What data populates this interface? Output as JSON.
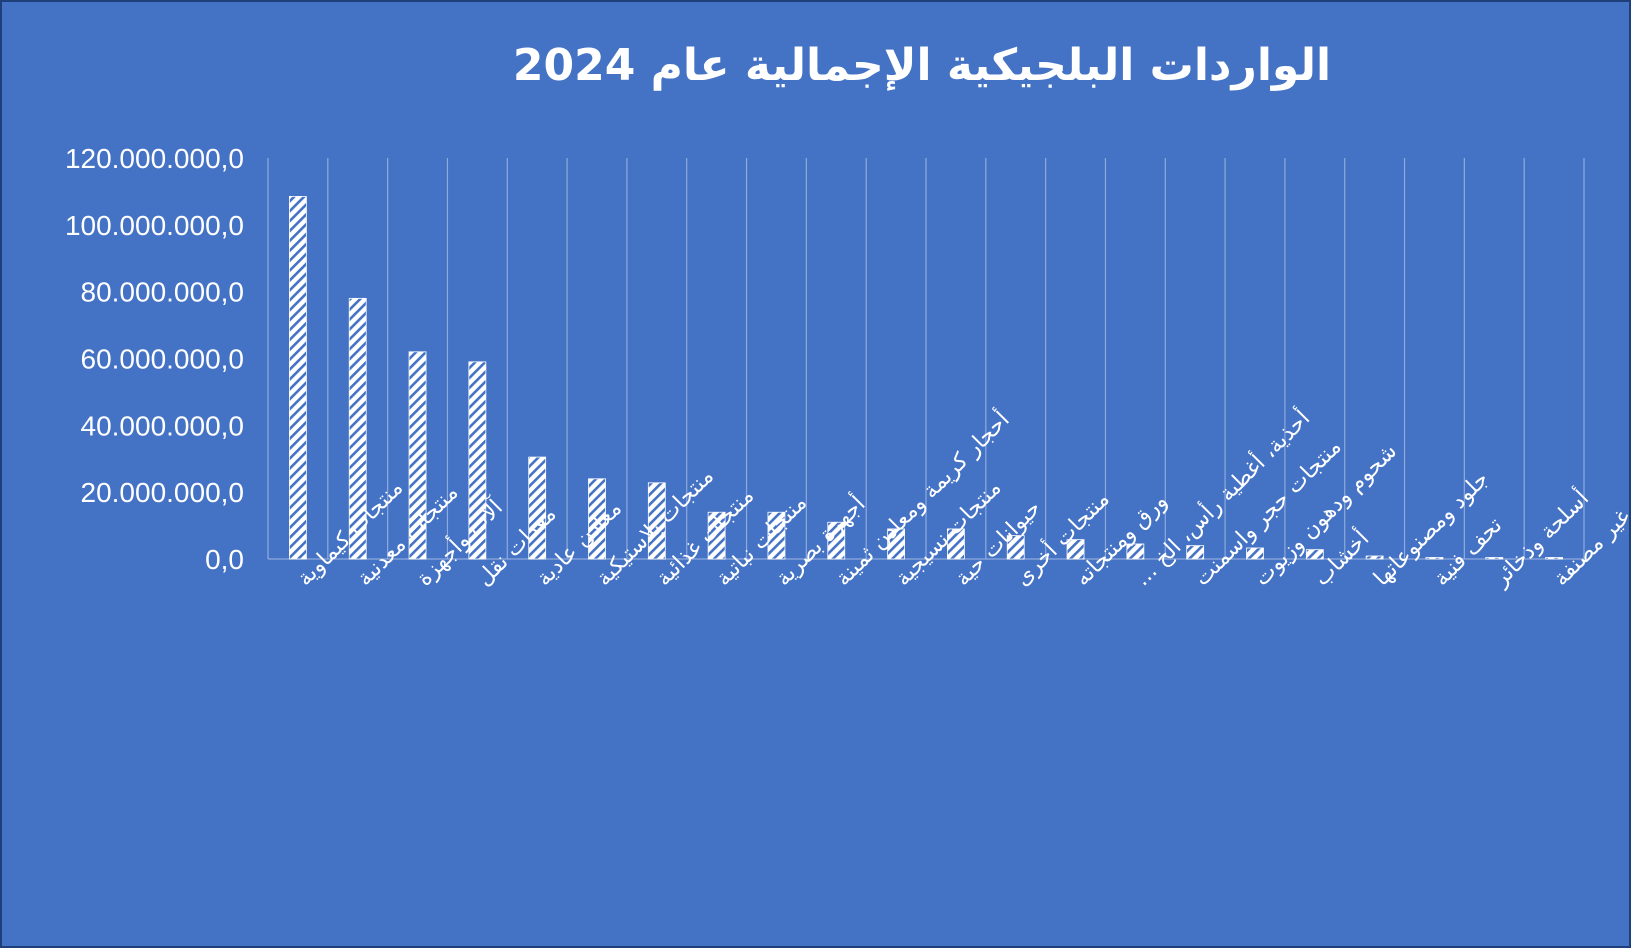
{
  "chart_data": {
    "type": "bar",
    "title": "الواردات البلجيكية الإجمالية عام 2024",
    "categories": [
      "منتجات كيماوية",
      "منتجات معدنية",
      "آلات وأجهزة",
      "معدات نقل",
      "معادن عادية",
      "منتجات بلاستيكية",
      "منتجات غذائية",
      "منتجات نباتية",
      "أجهزة بصرية",
      "أحجار كريمة ومعادن ثمينة",
      "منتجات نسيجية",
      "حيوانات حية",
      "منتجات أخرى",
      "ورق ومنتجاته",
      "أحذية، أغطية رأس، الخ ...",
      "منتجات حجر واسمنت",
      "شحوم ودهون وزيوت",
      "أخشاب",
      "جلود ومصنوعاتها",
      "تحف فنية",
      "أسلحة وذخائر",
      "سلع غير مصنفة"
    ],
    "values": [
      108500000,
      78000000,
      62000000,
      59000000,
      30500000,
      24000000,
      22800000,
      14000000,
      14000000,
      11000000,
      9000000,
      9000000,
      7000000,
      5800000,
      4500000,
      4000000,
      3300000,
      2800000,
      900000,
      400000,
      350000,
      300000
    ],
    "y_ticks": [
      "0,0",
      "20.000.000,0",
      "40.000.000,0",
      "60.000.000,0",
      "80.000.000,0",
      "100.000.000,0",
      "120.000.000,0"
    ],
    "ylim": [
      0,
      120000000
    ],
    "grid": "vertical",
    "legend": "none",
    "colors": {
      "background": "#4472c4",
      "bar": "#ffffff",
      "hatch": "#4472c4",
      "grid": "#8faadc",
      "text": "#ffffff"
    }
  }
}
